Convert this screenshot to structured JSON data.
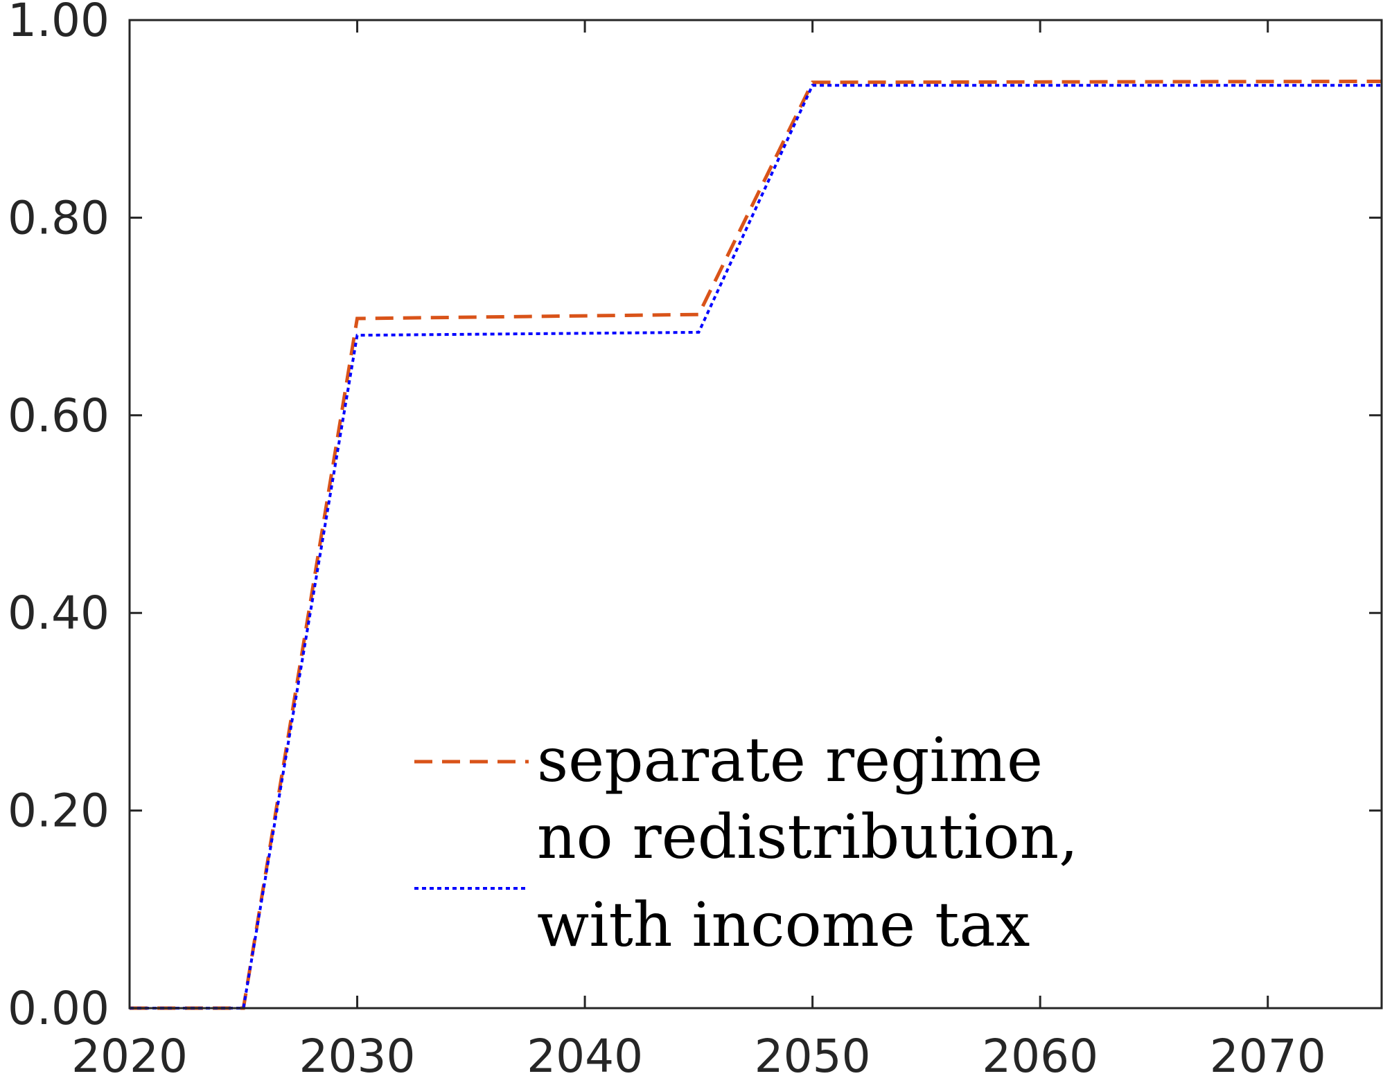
{
  "chart_data": {
    "type": "line",
    "title": "",
    "xlabel": "",
    "ylabel": "",
    "xlim": [
      2020,
      2075
    ],
    "ylim": [
      0,
      1
    ],
    "grid": false,
    "box": true,
    "legend_position": "lower-center",
    "x_ticks": [
      {
        "value": 2020,
        "label": "2020"
      },
      {
        "value": 2030,
        "label": "2030"
      },
      {
        "value": 2040,
        "label": "2040"
      },
      {
        "value": 2050,
        "label": "2050"
      },
      {
        "value": 2060,
        "label": "2060"
      },
      {
        "value": 2070,
        "label": "2070"
      }
    ],
    "y_ticks": [
      {
        "value": 0.0,
        "label": "0.00"
      },
      {
        "value": 0.2,
        "label": "0.20"
      },
      {
        "value": 0.4,
        "label": "0.40"
      },
      {
        "value": 0.6,
        "label": "0.60"
      },
      {
        "value": 0.8,
        "label": "0.80"
      },
      {
        "value": 1.0,
        "label": "1.00"
      }
    ],
    "series": [
      {
        "name": "separate regime",
        "color": "#D95319",
        "line_style": "dashed",
        "points": [
          [
            2020,
            0.0
          ],
          [
            2025,
            0.0
          ],
          [
            2030,
            0.698
          ],
          [
            2045,
            0.702
          ],
          [
            2050,
            0.937
          ],
          [
            2075,
            0.938
          ]
        ]
      },
      {
        "name": "no redistribution, with income tax",
        "color": "#0000FF",
        "line_style": "dotted",
        "points": [
          [
            2020,
            0.0
          ],
          [
            2025,
            0.0
          ],
          [
            2030,
            0.681
          ],
          [
            2045,
            0.684
          ],
          [
            2050,
            0.934
          ],
          [
            2075,
            0.934
          ]
        ]
      }
    ],
    "legend": {
      "entries": [
        {
          "lines": [
            "separate regime"
          ]
        },
        {
          "lines": [
            "no redistribution,",
            "with income tax"
          ]
        }
      ]
    }
  }
}
